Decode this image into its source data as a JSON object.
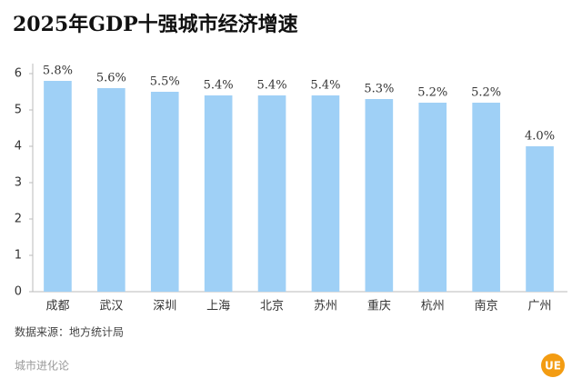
{
  "chart_data": {
    "type": "bar",
    "title": "2025年GDP十强城市经济增速",
    "categories": [
      "成都",
      "武汉",
      "深圳",
      "上海",
      "北京",
      "苏州",
      "重庆",
      "杭州",
      "南京",
      "广州"
    ],
    "values": [
      5.8,
      5.6,
      5.5,
      5.4,
      5.4,
      5.4,
      5.3,
      5.2,
      5.2,
      4.0
    ],
    "value_labels": [
      "5.8%",
      "5.6%",
      "5.5%",
      "5.4%",
      "5.4%",
      "5.4%",
      "5.3%",
      "5.2%",
      "5.2%",
      "4.0%"
    ],
    "color": "#9fd0f6",
    "ylim": [
      0,
      6.3
    ],
    "yticks": [
      0,
      1,
      2,
      3,
      4,
      5,
      6
    ],
    "grid": false,
    "source": "数据来源：地方统计局",
    "footer": "城市进化论",
    "logo": "UE"
  }
}
